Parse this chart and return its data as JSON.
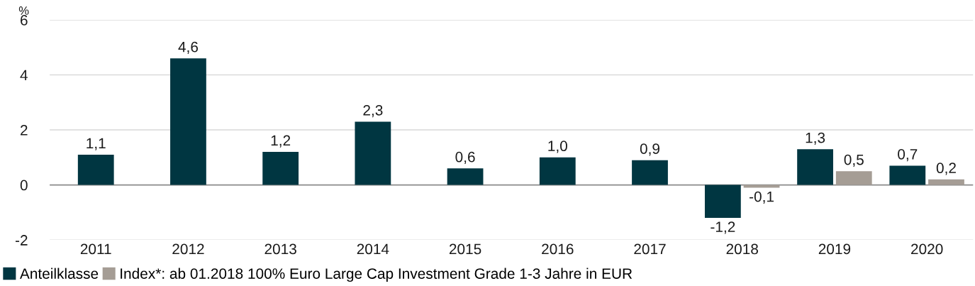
{
  "chart_data": {
    "type": "bar",
    "ylabel": "%",
    "categories": [
      "2011",
      "2012",
      "2013",
      "2014",
      "2015",
      "2016",
      "2017",
      "2018",
      "2019",
      "2020"
    ],
    "series": [
      {
        "name": "Anteilklasse",
        "color": "#003641",
        "values": [
          1.1,
          4.6,
          1.2,
          2.3,
          0.6,
          1.0,
          0.9,
          -1.2,
          1.3,
          0.7
        ],
        "value_labels": [
          "1,1",
          "4,6",
          "1,2",
          "2,3",
          "0,6",
          "1,0",
          "0,9",
          "-1,2",
          "1,3",
          "0,7"
        ]
      },
      {
        "name": "Index*: ab 01.2018 100% Euro Large Cap Investment Grade 1-3 Jahre in EUR",
        "color": "#a59d95",
        "values": [
          null,
          null,
          null,
          null,
          null,
          null,
          null,
          -0.1,
          0.5,
          0.2
        ],
        "value_labels": [
          null,
          null,
          null,
          null,
          null,
          null,
          null,
          "-0,1",
          "0,5",
          "0,2"
        ]
      }
    ],
    "ylim": [
      -2,
      6
    ],
    "yticks": [
      -2,
      0,
      2,
      4,
      6
    ],
    "grid": "y",
    "legend": "bottom left"
  }
}
